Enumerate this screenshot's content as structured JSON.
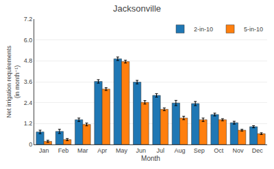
{
  "chart_data": {
    "type": "bar",
    "title": "Jacksonville",
    "x_label": "Month",
    "y_label": "Net irrigation requirements\n(in month⁻¹)",
    "categories": [
      "Jan",
      "Feb",
      "Mar",
      "Apr",
      "May",
      "Jun",
      "Jul",
      "Aug",
      "Sep",
      "Oct",
      "Nov",
      "Dec"
    ],
    "series": [
      {
        "name": "2-in-10",
        "values": [
          0.72,
          0.75,
          1.42,
          3.62,
          4.92,
          3.58,
          2.82,
          2.38,
          2.35,
          1.72,
          1.25,
          1.02
        ],
        "errors": [
          0.1,
          0.12,
          0.1,
          0.1,
          0.1,
          0.1,
          0.1,
          0.15,
          0.12,
          0.08,
          0.08,
          0.06
        ]
      },
      {
        "name": "5-in-10",
        "values": [
          0.18,
          0.28,
          1.15,
          3.18,
          4.76,
          2.42,
          2.02,
          1.52,
          1.42,
          1.42,
          0.82,
          0.62
        ],
        "errors": [
          0.06,
          0.06,
          0.08,
          0.08,
          0.08,
          0.1,
          0.08,
          0.1,
          0.1,
          0.06,
          0.05,
          0.05
        ]
      }
    ],
    "ylim": [
      0,
      7.2
    ],
    "yticks": [
      0,
      1.2,
      2.4,
      3.6,
      4.8,
      {
        "value": 6.0,
        "label": "6.0"
      },
      7.2
    ],
    "grid": true,
    "legend": "upper right"
  }
}
